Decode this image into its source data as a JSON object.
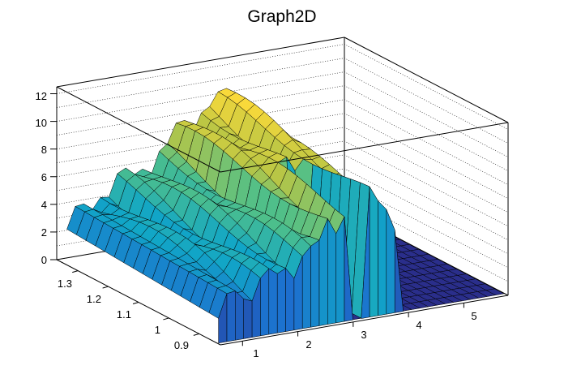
{
  "chart_data": {
    "type": "surface",
    "title": "Graph2D",
    "x_ticks": [
      "1",
      "2",
      "3",
      "4",
      "5"
    ],
    "y_ticks": [
      "0.9",
      "1",
      "1.1",
      "1.2",
      "1.3"
    ],
    "z_ticks": [
      "0",
      "2",
      "4",
      "6",
      "8",
      "10",
      "12"
    ],
    "x_range": [
      0.6,
      5.8
    ],
    "y_range": [
      0.83,
      1.37
    ],
    "z_range": [
      0,
      12.5
    ],
    "z_peak": 10.5,
    "grid": true,
    "palette": [
      "#2a2d8a",
      "#1d6fcf",
      "#11a6c7",
      "#4dbf8b",
      "#b9c645",
      "#f9d93a"
    ]
  }
}
